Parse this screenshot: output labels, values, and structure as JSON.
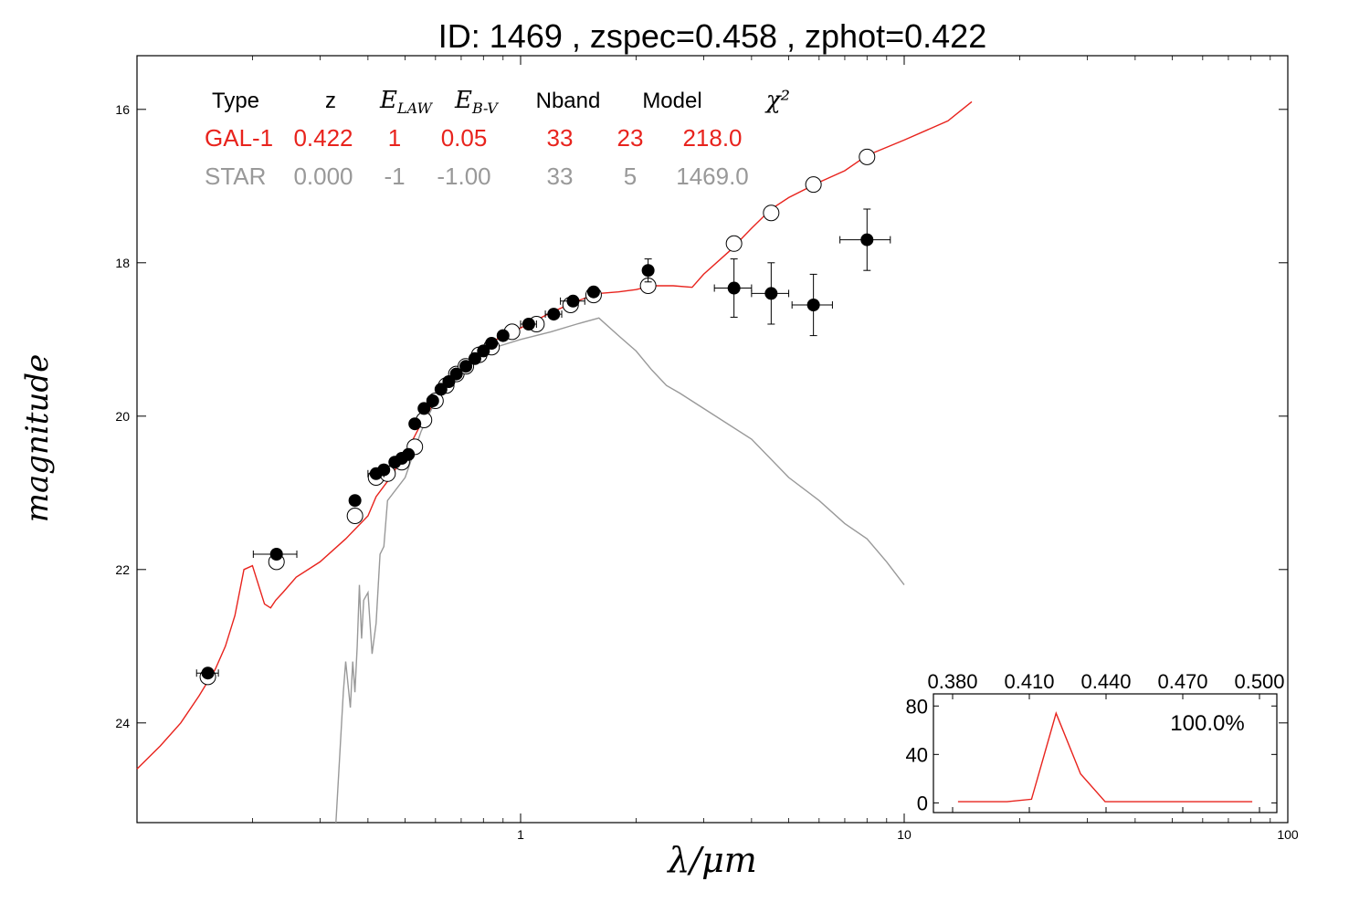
{
  "chart_data": {
    "type": "scatter",
    "title": "ID:  1469  , zspec=0.458 , zphot=0.422",
    "xlabel": "λ/μm",
    "ylabel": "magnitude",
    "x_scale": "log",
    "xlim": [
      0.1,
      100
    ],
    "ylim": [
      25.3,
      15.3
    ],
    "x_ticks": [
      "1",
      "10",
      "100"
    ],
    "y_ticks": [
      "16",
      "18",
      "20",
      "22",
      "24"
    ],
    "table": {
      "headers": [
        "Type",
        "z",
        "E_LAW",
        "E_B-V",
        "Nband",
        "Model",
        "χ²"
      ],
      "rows": [
        {
          "color": "#e8231d",
          "cells": [
            "GAL-1",
            "0.422",
            "1",
            "0.05",
            "33",
            "23",
            "218.0"
          ]
        },
        {
          "color": "#999999",
          "cells": [
            "STAR",
            "0.000",
            "-1",
            "-1.00",
            "33",
            "5",
            "1469.0"
          ]
        }
      ]
    },
    "series": [
      {
        "name": "GAL-1",
        "kind": "line",
        "color": "#e8231d",
        "x": [
          0.1,
          0.115,
          0.13,
          0.145,
          0.16,
          0.17,
          0.18,
          0.19,
          0.2,
          0.215,
          0.223,
          0.23,
          0.24,
          0.26,
          0.3,
          0.35,
          0.4,
          0.42,
          0.45,
          0.5,
          0.55,
          0.6,
          0.65,
          0.7,
          0.75,
          0.8,
          0.9,
          1.0,
          1.2,
          1.4,
          1.6,
          1.8,
          2.0,
          2.2,
          2.5,
          2.8,
          3.0,
          3.5,
          4.0,
          4.5,
          5.0,
          6.0,
          7.0,
          8.0,
          10.0,
          13.0,
          15.0
        ],
        "y": [
          24.6,
          24.3,
          24.0,
          23.65,
          23.3,
          23.0,
          22.6,
          22.0,
          21.95,
          22.45,
          22.5,
          22.4,
          22.3,
          22.1,
          21.9,
          21.6,
          21.3,
          21.05,
          20.85,
          20.5,
          20.1,
          19.8,
          19.6,
          19.4,
          19.2,
          19.1,
          18.95,
          18.85,
          18.65,
          18.5,
          18.4,
          18.38,
          18.35,
          18.3,
          18.3,
          18.32,
          18.15,
          17.85,
          17.55,
          17.3,
          17.15,
          16.95,
          16.8,
          16.6,
          16.4,
          16.15,
          15.9
        ]
      },
      {
        "name": "STAR",
        "kind": "line",
        "color": "#999999",
        "x": [
          0.33,
          0.345,
          0.35,
          0.36,
          0.365,
          0.37,
          0.375,
          0.38,
          0.385,
          0.39,
          0.4,
          0.41,
          0.42,
          0.43,
          0.44,
          0.45,
          0.5,
          0.55,
          0.6,
          0.7,
          0.8,
          1.0,
          1.2,
          1.4,
          1.6,
          1.8,
          2.0,
          2.2,
          2.4,
          2.6,
          3.0,
          4.0,
          5.0,
          6.0,
          7.0,
          8.0,
          9.0,
          10.0
        ],
        "y": [
          25.3,
          23.6,
          23.2,
          23.8,
          23.2,
          23.6,
          23.0,
          22.2,
          22.9,
          22.4,
          22.3,
          23.1,
          22.7,
          21.8,
          21.7,
          21.1,
          20.8,
          20.2,
          19.8,
          19.4,
          19.15,
          19.0,
          18.9,
          18.8,
          18.72,
          18.95,
          19.15,
          19.4,
          19.6,
          19.7,
          19.9,
          20.3,
          20.8,
          21.1,
          21.4,
          21.6,
          21.9,
          22.2
        ]
      },
      {
        "name": "observed",
        "kind": "filled-points",
        "color": "#000000",
        "points": [
          {
            "x": 0.153,
            "y": 23.35,
            "xerr": 0.01,
            "yerr": 0.05
          },
          {
            "x": 0.231,
            "y": 21.8,
            "xerr": 0.03,
            "yerr": 0.06
          },
          {
            "x": 0.37,
            "y": 21.1,
            "xerr": 0.004,
            "yerr": 0.06
          },
          {
            "x": 0.42,
            "y": 20.75,
            "xerr": 0.02,
            "yerr": 0.04
          },
          {
            "x": 0.44,
            "y": 20.7,
            "xerr": 0.0,
            "yerr": 0.04
          },
          {
            "x": 0.47,
            "y": 20.6,
            "xerr": 0.0,
            "yerr": 0.04
          },
          {
            "x": 0.49,
            "y": 20.55,
            "xerr": 0.0,
            "yerr": 0.04
          },
          {
            "x": 0.51,
            "y": 20.5,
            "xerr": 0.0,
            "yerr": 0.04
          },
          {
            "x": 0.53,
            "y": 20.1,
            "xerr": 0.0,
            "yerr": 0.04
          },
          {
            "x": 0.56,
            "y": 19.9,
            "xerr": 0.0,
            "yerr": 0.04
          },
          {
            "x": 0.59,
            "y": 19.8,
            "xerr": 0.0,
            "yerr": 0.04
          },
          {
            "x": 0.62,
            "y": 19.65,
            "xerr": 0.0,
            "yerr": 0.04
          },
          {
            "x": 0.65,
            "y": 19.55,
            "xerr": 0.0,
            "yerr": 0.04
          },
          {
            "x": 0.68,
            "y": 19.45,
            "xerr": 0.0,
            "yerr": 0.04
          },
          {
            "x": 0.72,
            "y": 19.35,
            "xerr": 0.0,
            "yerr": 0.04
          },
          {
            "x": 0.76,
            "y": 19.25,
            "xerr": 0.0,
            "yerr": 0.04
          },
          {
            "x": 0.8,
            "y": 19.15,
            "xerr": 0.0,
            "yerr": 0.04
          },
          {
            "x": 0.84,
            "y": 19.05,
            "xerr": 0.0,
            "yerr": 0.04
          },
          {
            "x": 0.9,
            "y": 18.95,
            "xerr": 0.0,
            "yerr": 0.04
          },
          {
            "x": 1.05,
            "y": 18.8,
            "xerr": 0.05,
            "yerr": 0.04
          },
          {
            "x": 1.22,
            "y": 18.67,
            "xerr": 0.06,
            "yerr": 0.04
          },
          {
            "x": 1.37,
            "y": 18.5,
            "xerr": 0.1,
            "yerr": 0.04
          },
          {
            "x": 1.55,
            "y": 18.38,
            "xerr": 0.0,
            "yerr": 0.06
          },
          {
            "x": 2.15,
            "y": 18.1,
            "xerr": 0.0,
            "yerr": 0.15
          },
          {
            "x": 3.6,
            "y": 18.33,
            "xerr": 0.4,
            "yerr": 0.38
          },
          {
            "x": 4.5,
            "y": 18.4,
            "xerr": 0.5,
            "yerr": 0.4
          },
          {
            "x": 5.8,
            "y": 18.55,
            "xerr": 0.7,
            "yerr": 0.4
          },
          {
            "x": 8.0,
            "y": 17.7,
            "xerr": 1.2,
            "yerr": 0.4
          }
        ]
      },
      {
        "name": "model-fluxes",
        "kind": "open-points",
        "color": "#000000",
        "points": [
          {
            "x": 0.153,
            "y": 23.4
          },
          {
            "x": 0.231,
            "y": 21.9
          },
          {
            "x": 0.37,
            "y": 21.3
          },
          {
            "x": 0.42,
            "y": 20.8
          },
          {
            "x": 0.45,
            "y": 20.75
          },
          {
            "x": 0.49,
            "y": 20.6
          },
          {
            "x": 0.53,
            "y": 20.4
          },
          {
            "x": 0.56,
            "y": 20.05
          },
          {
            "x": 0.6,
            "y": 19.8
          },
          {
            "x": 0.64,
            "y": 19.6
          },
          {
            "x": 0.68,
            "y": 19.45
          },
          {
            "x": 0.72,
            "y": 19.35
          },
          {
            "x": 0.78,
            "y": 19.2
          },
          {
            "x": 0.84,
            "y": 19.1
          },
          {
            "x": 0.95,
            "y": 18.9
          },
          {
            "x": 1.1,
            "y": 18.8
          },
          {
            "x": 1.35,
            "y": 18.55
          },
          {
            "x": 1.55,
            "y": 18.42
          },
          {
            "x": 2.15,
            "y": 18.3
          },
          {
            "x": 3.6,
            "y": 17.75
          },
          {
            "x": 4.5,
            "y": 17.35
          },
          {
            "x": 5.8,
            "y": 16.98
          },
          {
            "x": 8.0,
            "y": 16.62
          }
        ]
      }
    ],
    "inset": {
      "type": "line",
      "percent_label": "100.0%",
      "top_ticks": [
        "0.380",
        "0.410",
        "0.440",
        "0.470",
        "0.500"
      ],
      "y_ticks": [
        "0",
        "40",
        "80"
      ],
      "xlim": [
        0.37,
        0.51
      ],
      "ylim": [
        -8,
        90
      ],
      "x": [
        0.38,
        0.4,
        0.41,
        0.42,
        0.43,
        0.44,
        0.45,
        0.5
      ],
      "y": [
        1,
        1,
        3,
        74,
        24,
        1,
        1,
        1
      ],
      "color": "#e8231d"
    }
  }
}
